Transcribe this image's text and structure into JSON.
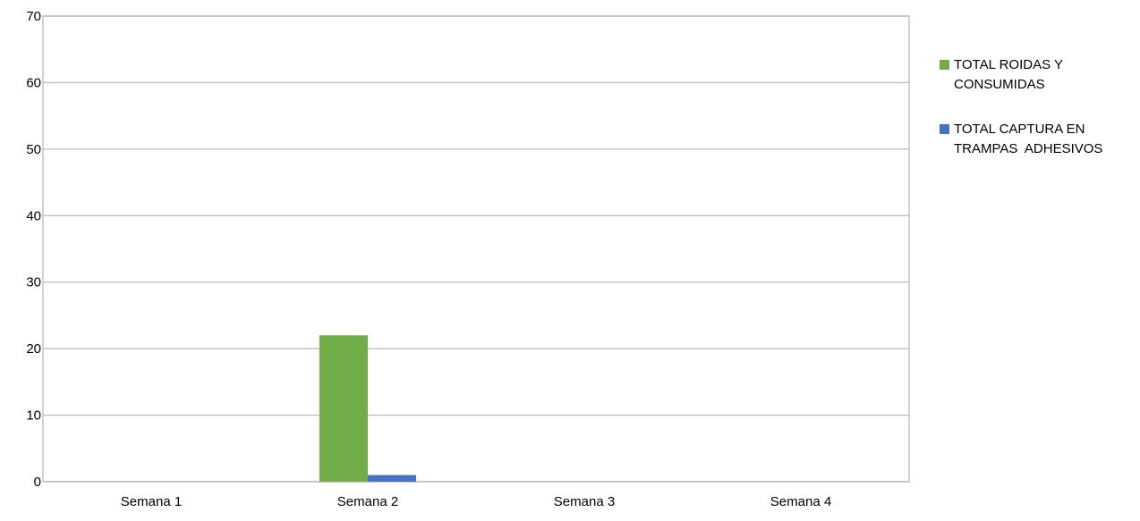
{
  "chart_data": {
    "type": "bar",
    "categories": [
      "Semana 1",
      "Semana 2",
      "Semana 3",
      "Semana 4"
    ],
    "series": [
      {
        "name": "TOTAL ROIDAS Y CONSUMIDAS",
        "values": [
          0,
          22,
          0,
          0
        ],
        "color": "#70ad47"
      },
      {
        "name": "TOTAL CAPTURA EN TRAMPAS  ADHESIVOS",
        "values": [
          0,
          1,
          0,
          0
        ],
        "color": "#4472c4"
      }
    ],
    "ylim": [
      0,
      70
    ],
    "yticks": [
      0,
      10,
      20,
      30,
      40,
      50,
      60,
      70
    ],
    "grid": true,
    "legend_position": "right"
  },
  "legend": {
    "items": [
      {
        "label_line1": "TOTAL ROIDAS Y",
        "label_line2": "CONSUMIDAS"
      },
      {
        "label_line1": "TOTAL CAPTURA EN",
        "label_line2": "TRAMPAS  ADHESIVOS"
      }
    ]
  }
}
